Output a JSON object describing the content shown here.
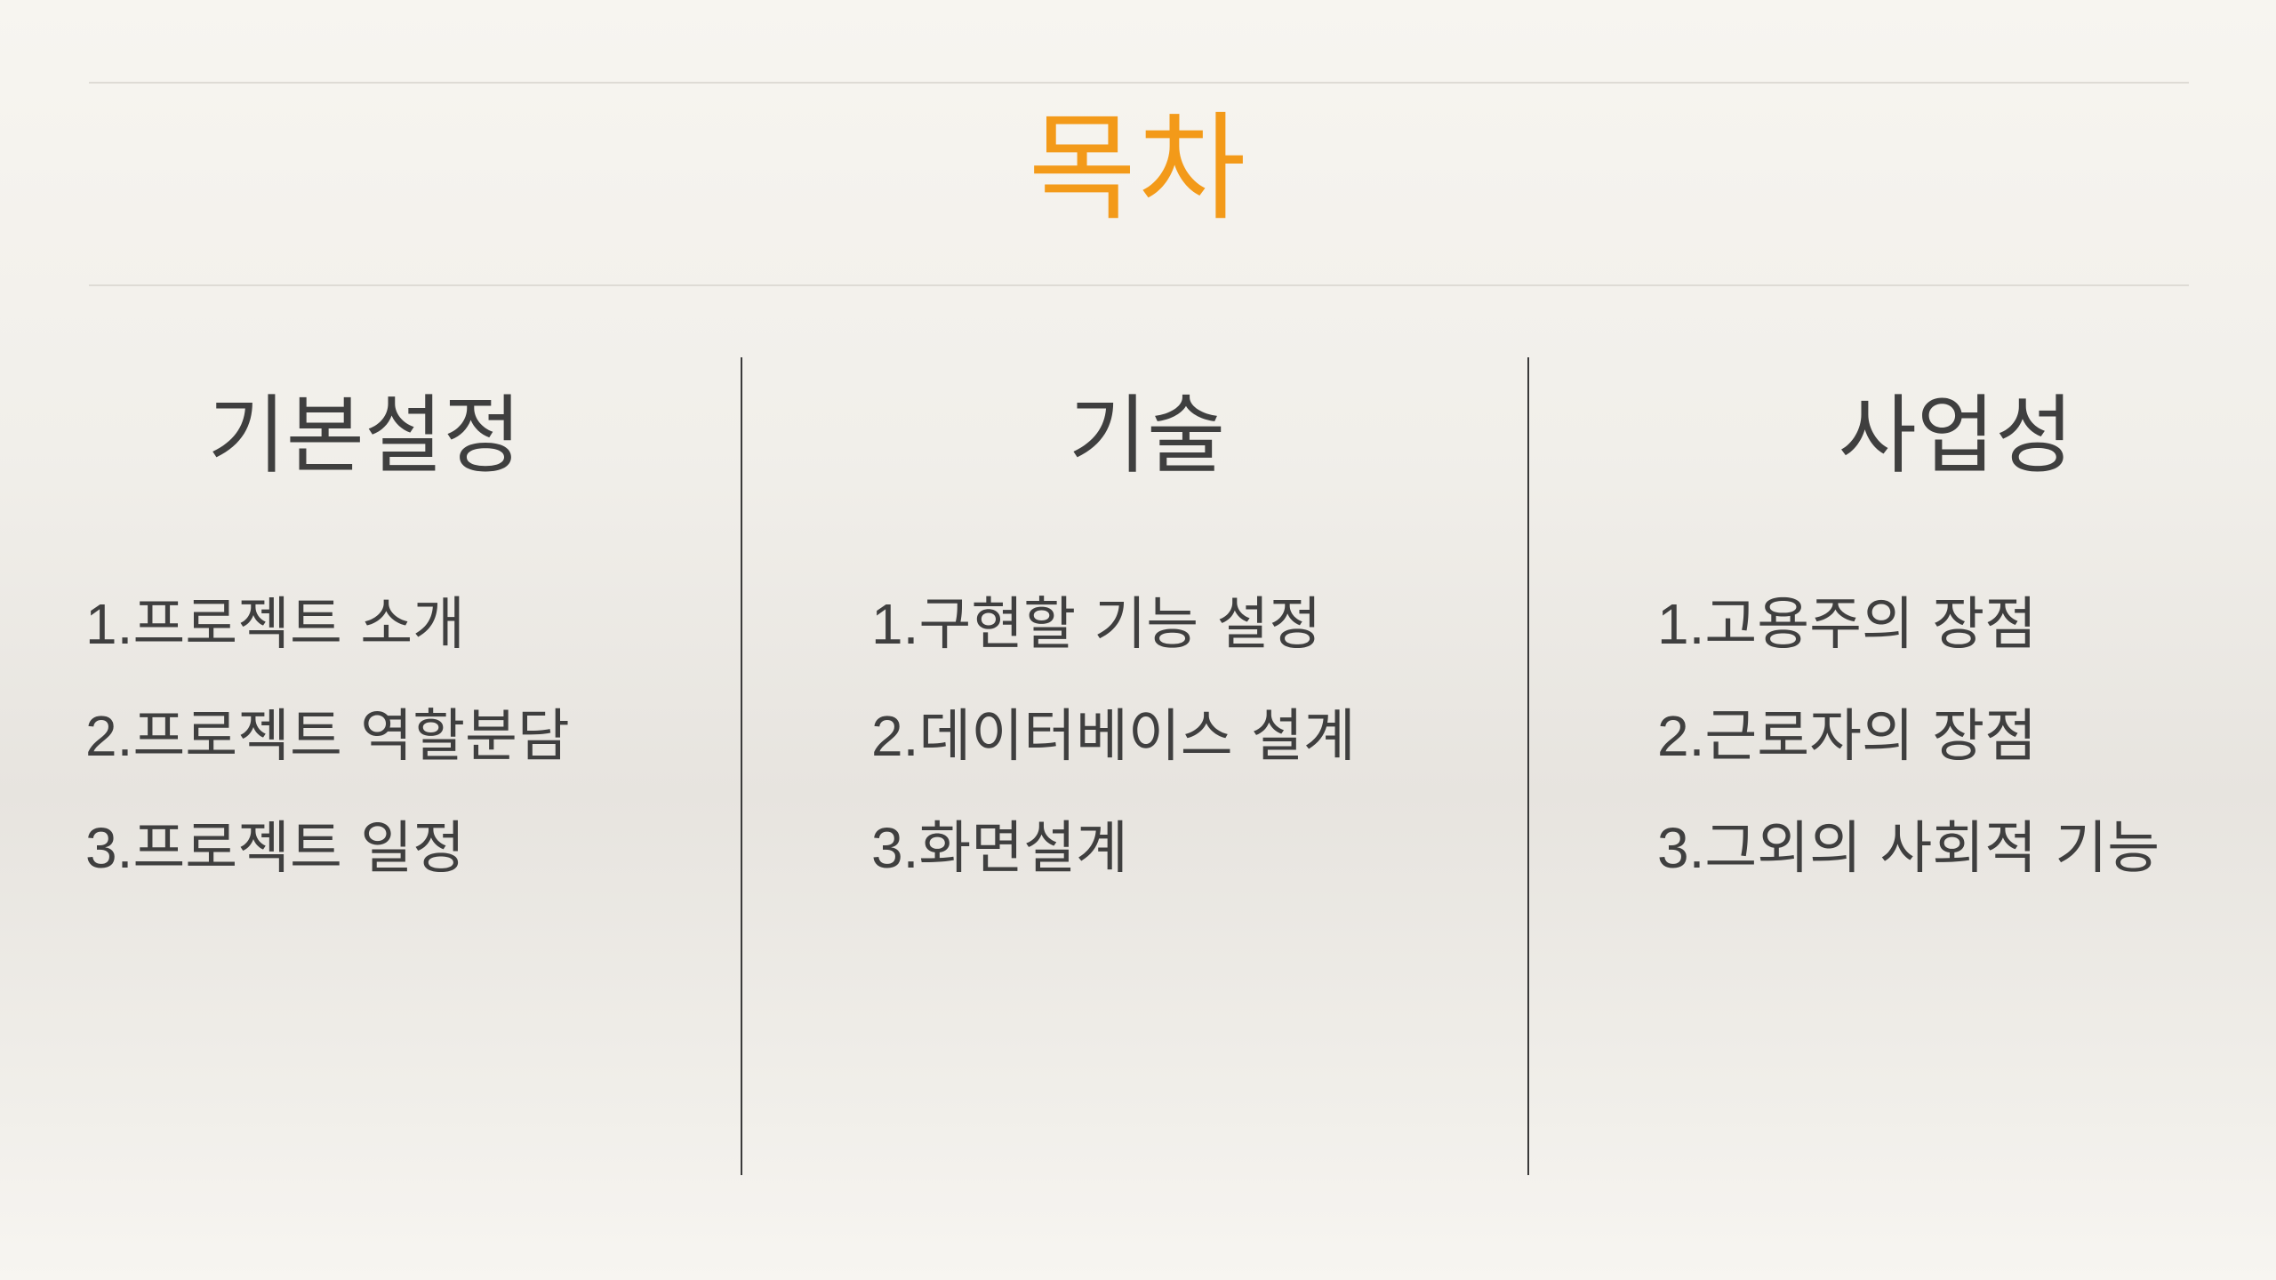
{
  "title": "목차",
  "columns": [
    {
      "heading": "기본설정",
      "items": [
        {
          "num": "1.",
          "text": "프로젝트 소개"
        },
        {
          "num": "2.",
          "text": "프로젝트 역할분담"
        },
        {
          "num": "3.",
          "text": "프로젝트 일정"
        }
      ]
    },
    {
      "heading": "기술",
      "items": [
        {
          "num": "1.",
          "text": "구현할 기능 설정"
        },
        {
          "num": "2.",
          "text": "데이터베이스 설계"
        },
        {
          "num": "3.",
          "text": "화면설계"
        }
      ]
    },
    {
      "heading": "사업성",
      "items": [
        {
          "num": "1.",
          "text": "고용주의 장점"
        },
        {
          "num": "2.",
          "text": "근로자의 장점"
        },
        {
          "num": "3.",
          "text": "그외의 사회적 기능"
        }
      ]
    }
  ],
  "colors": {
    "title": "#f39a19",
    "text": "#3f3f3f",
    "divider": "#3a3a3a",
    "rule": "#dedbd5"
  }
}
